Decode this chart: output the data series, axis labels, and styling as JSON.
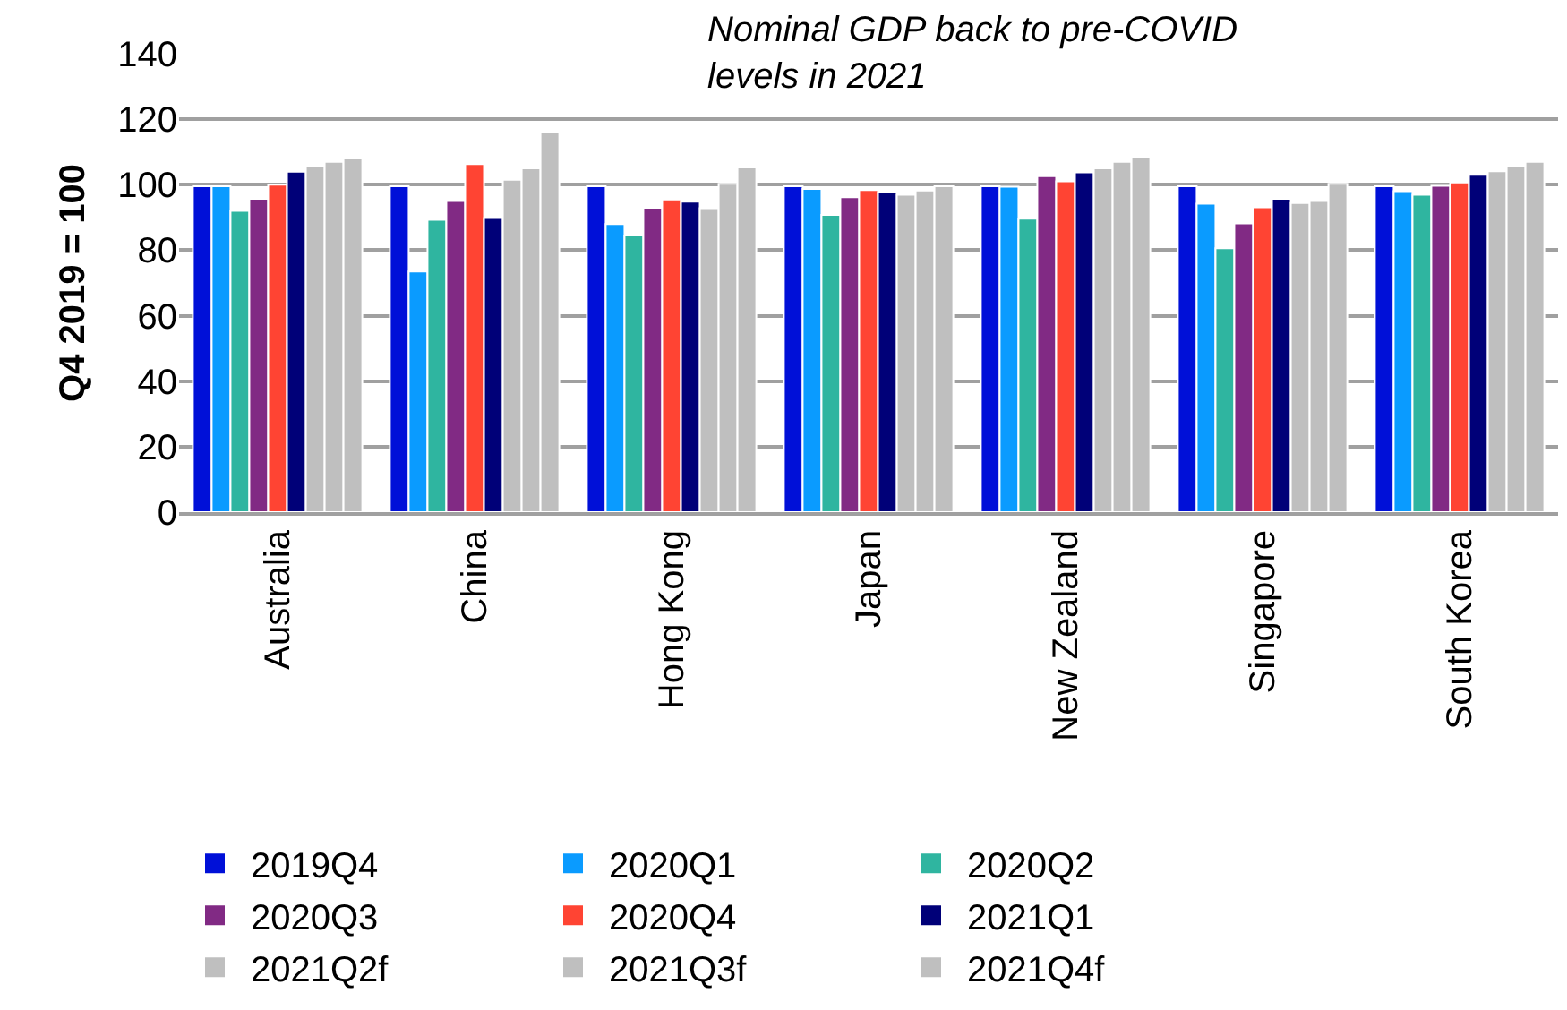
{
  "chart_data": {
    "type": "bar",
    "ylabel": "Q4 2019 = 100",
    "categories": [
      "Australia",
      "China",
      "Hong Kong",
      "Japan",
      "New Zealand",
      "Singapore",
      "South Korea"
    ],
    "series": [
      {
        "name": "2019Q4",
        "color": "#0010d8",
        "values": [
          99.5,
          99.5,
          99.5,
          99.5,
          99.5,
          99.5,
          99.5
        ]
      },
      {
        "name": "2020Q1",
        "color": "#0a9bff",
        "values": [
          99.5,
          73.5,
          88,
          98.7,
          99.4,
          94.2,
          98
        ]
      },
      {
        "name": "2020Q2",
        "color": "#2fb5a0",
        "values": [
          92,
          89.3,
          84.5,
          90.8,
          89.6,
          80.6,
          96.9
        ]
      },
      {
        "name": "2020Q3",
        "color": "#812a84",
        "values": [
          95.7,
          95,
          93,
          96.2,
          102.6,
          88.2,
          99.7
        ]
      },
      {
        "name": "2020Q4",
        "color": "#ff4433",
        "values": [
          100,
          106.3,
          95.5,
          98.4,
          101,
          93.1,
          100.7
        ]
      },
      {
        "name": "2021Q1",
        "color": "#000078",
        "values": [
          104,
          89.8,
          94.8,
          97.7,
          103.8,
          95.7,
          103
        ]
      },
      {
        "name": "2021Q2f",
        "color": "#bfbfbf",
        "values": [
          105.8,
          101.5,
          92.8,
          96.9,
          105,
          94.4,
          104.1
        ]
      },
      {
        "name": "2021Q3f",
        "color": "#bfbfbf",
        "values": [
          107,
          105,
          100.3,
          98.2,
          107,
          95,
          105.6
        ]
      },
      {
        "name": "2021Q4f",
        "color": "#bfbfbf",
        "values": [
          108,
          116,
          105.3,
          99.5,
          108.5,
          100.3,
          107
        ]
      }
    ],
    "ylim": [
      0,
      140
    ],
    "yticks": [
      0,
      20,
      40,
      60,
      80,
      100,
      120,
      140
    ],
    "grid": "y",
    "legend": "bottom",
    "annotations": [
      "Nominal GDP back to pre-COVID levels in 2021"
    ]
  }
}
